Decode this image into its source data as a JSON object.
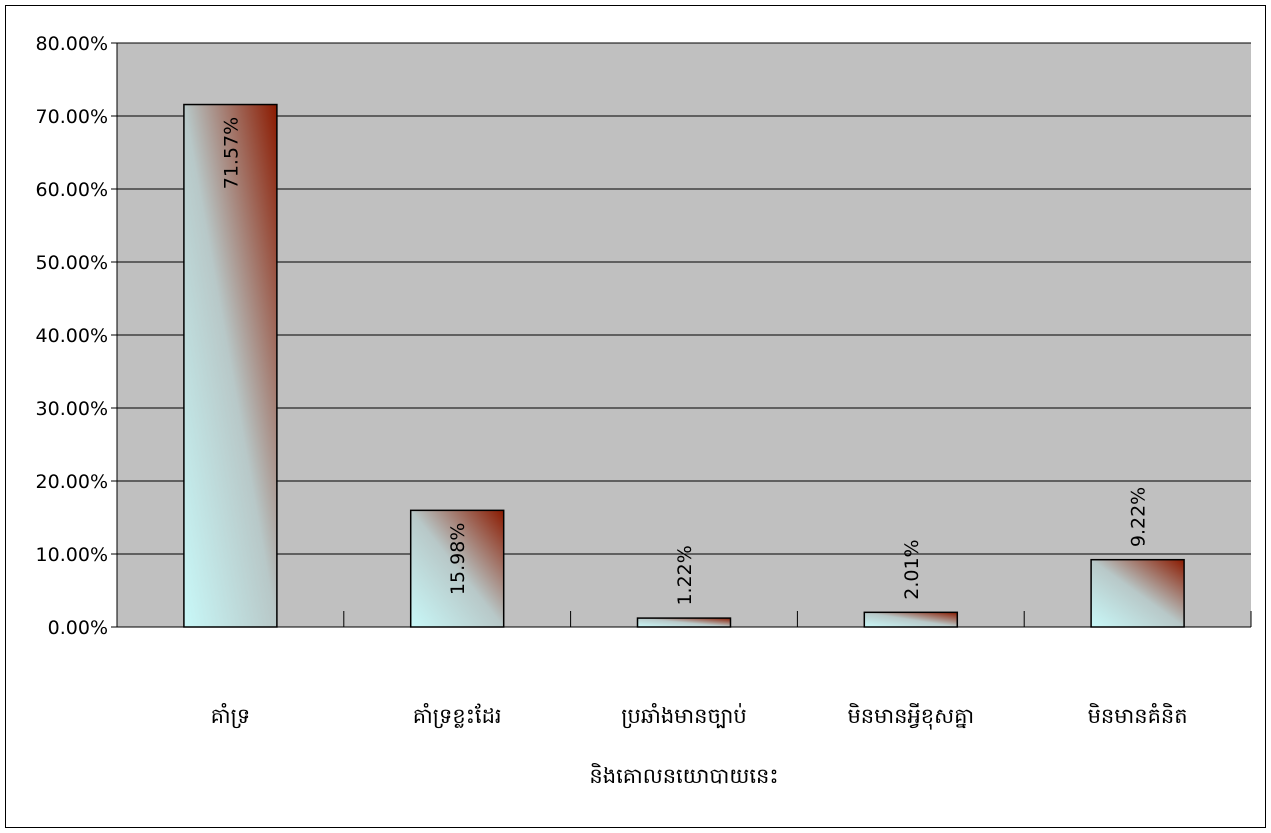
{
  "chart_data": {
    "type": "bar",
    "categories": [
      "គាំទ្រ",
      "គាំទ្រខ្លះដែរ",
      "ប្រឆាំងមានច្បាប់",
      "មិនមានអ្វីខុសគ្នា",
      "មិនមានគំនិត"
    ],
    "categories_extra_line": "និងគោលនយោបាយនេះ",
    "values": [
      71.57,
      15.98,
      1.22,
      2.01,
      9.22
    ],
    "data_labels": [
      "71.57%",
      "15.98%",
      "1.22%",
      "2.01%",
      "9.22%"
    ],
    "ylim": [
      0,
      80
    ],
    "yticks": [
      0,
      10,
      20,
      30,
      40,
      50,
      60,
      70,
      80
    ],
    "ytick_labels": [
      "0.00%",
      "10.00%",
      "20.00%",
      "30.00%",
      "40.00%",
      "50.00%",
      "60.00%",
      "70.00%",
      "80.00%"
    ],
    "grid": true,
    "legend": "none",
    "colors": {
      "plot_bg": "#c0c0c0",
      "bar_light": "#c8f8f8",
      "bar_mid": "#b8c8c8",
      "bar_dark": "#8b1a00",
      "grid": "#000000"
    }
  }
}
